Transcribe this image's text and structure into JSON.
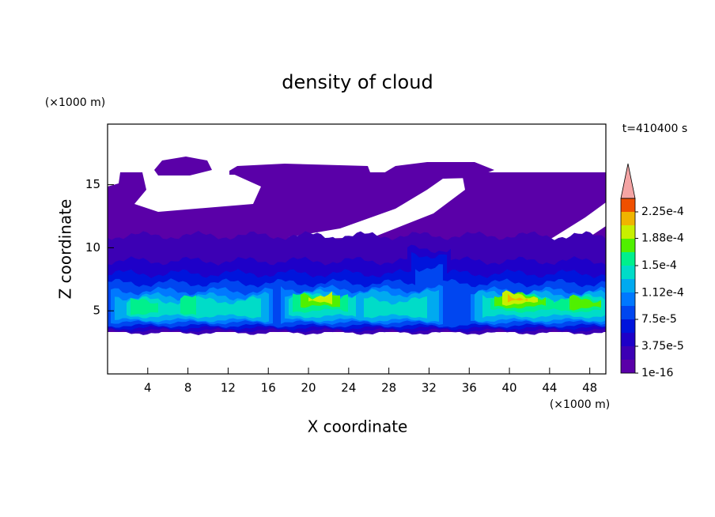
{
  "chart_data": {
    "type": "contour",
    "title": "density of cloud",
    "x_label": "X coordinate",
    "y_label": "Z coordinate",
    "x_unit": "(×1000 m)",
    "y_unit": "(×1000 m)",
    "time_label": "t=410400 s",
    "xlim": [
      0,
      49.6
    ],
    "ylim": [
      0,
      19.8
    ],
    "xticks": [
      4,
      8,
      12,
      16,
      20,
      24,
      28,
      32,
      36,
      40,
      44,
      48
    ],
    "yticks": [
      5,
      10,
      15
    ],
    "levels": [
      1e-16,
      1.875e-05,
      3.75e-05,
      5.625e-05,
      7.5e-05,
      9.375e-05,
      0.0001125,
      0.00013125,
      0.00015,
      0.00016875,
      0.0001875,
      0.00020625,
      0.000225
    ],
    "colors": [
      "#5a00a8",
      "#3c00b4",
      "#1e00c8",
      "#0014dc",
      "#0046f0",
      "#0078ff",
      "#00aaf0",
      "#00dcc8",
      "#00f08c",
      "#50f000",
      "#c8f000",
      "#f0b400",
      "#f05000"
    ],
    "extend_color": "#f4a4a4",
    "colorbar_ticks": [
      1e-16,
      {
        "value": 3.75e-05,
        "label": "3.75e-5"
      },
      {
        "value": 7.5e-05,
        "label": "7.5e-5"
      },
      {
        "value": 0.000112,
        "label": "1.12e-4"
      },
      {
        "value": 0.00015,
        "label": "1.5e-4"
      },
      {
        "value": 0.000188,
        "label": "1.88e-4"
      },
      {
        "value": 0.000225,
        "label": "2.25e-4"
      }
    ]
  }
}
